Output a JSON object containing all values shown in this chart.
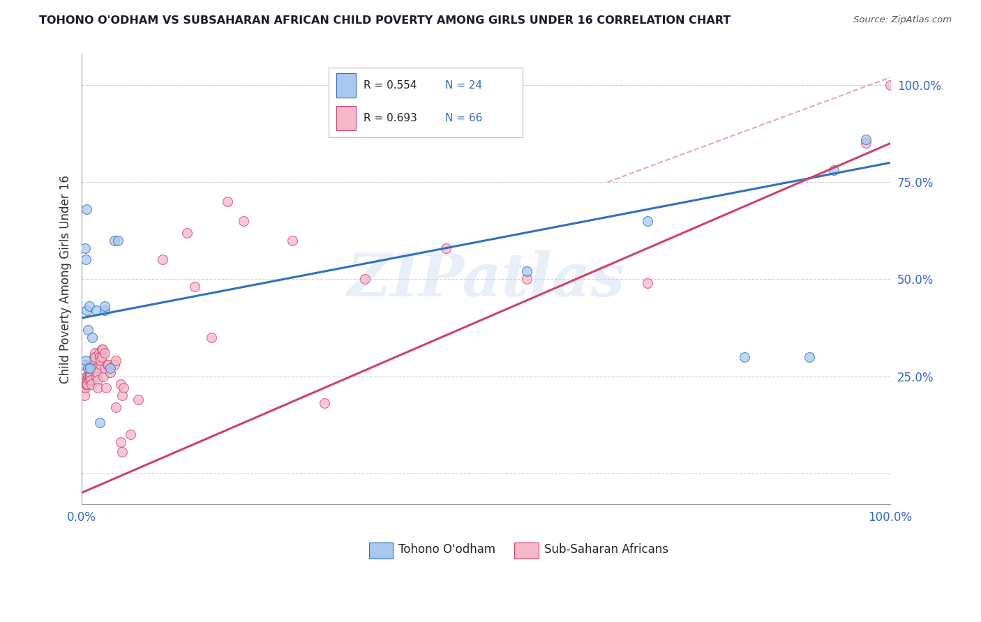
{
  "title": "TOHONO O'ODHAM VS SUBSAHARAN AFRICAN CHILD POVERTY AMONG GIRLS UNDER 16 CORRELATION CHART",
  "source": "Source: ZipAtlas.com",
  "ylabel": "Child Poverty Among Girls Under 16",
  "blue_R": "R = 0.554",
  "blue_N": "N = 24",
  "pink_R": "R = 0.693",
  "pink_N": "N = 66",
  "blue_color": "#a8c8f0",
  "pink_color": "#f5b8c8",
  "blue_line_color": "#3070c0",
  "pink_line_color": "#d04070",
  "dashed_line_color": "#e08090",
  "legend_label_blue": "Tohono O'odham",
  "legend_label_pink": "Sub-Saharan Africans",
  "watermark": "ZIPatlas",
  "blue_points_pct": [
    [
      0.3,
      28
    ],
    [
      0.4,
      58
    ],
    [
      0.5,
      55
    ],
    [
      0.5,
      29
    ],
    [
      0.6,
      42
    ],
    [
      0.6,
      68
    ],
    [
      0.8,
      37
    ],
    [
      0.8,
      27
    ],
    [
      0.9,
      43
    ],
    [
      1.0,
      27
    ],
    [
      1.3,
      35
    ],
    [
      1.8,
      42
    ],
    [
      2.2,
      13
    ],
    [
      2.8,
      42
    ],
    [
      2.8,
      43
    ],
    [
      3.5,
      27
    ],
    [
      4.0,
      60
    ],
    [
      4.5,
      60
    ],
    [
      55,
      52
    ],
    [
      70,
      65
    ],
    [
      82,
      30
    ],
    [
      90,
      30
    ],
    [
      93,
      78
    ],
    [
      97,
      86
    ]
  ],
  "pink_points_pct": [
    [
      0.2,
      22
    ],
    [
      0.3,
      20
    ],
    [
      0.4,
      22
    ],
    [
      0.5,
      24
    ],
    [
      0.5,
      23
    ],
    [
      0.6,
      25
    ],
    [
      0.6,
      23
    ],
    [
      0.7,
      24
    ],
    [
      0.7,
      23
    ],
    [
      0.8,
      27
    ],
    [
      0.8,
      25
    ],
    [
      0.9,
      24
    ],
    [
      0.9,
      25
    ],
    [
      1.0,
      25
    ],
    [
      1.0,
      26
    ],
    [
      1.1,
      24
    ],
    [
      1.2,
      23
    ],
    [
      1.3,
      28
    ],
    [
      1.4,
      27
    ],
    [
      1.5,
      30
    ],
    [
      1.5,
      29
    ],
    [
      1.6,
      31
    ],
    [
      1.6,
      30
    ],
    [
      1.8,
      25
    ],
    [
      1.8,
      27
    ],
    [
      1.9,
      26
    ],
    [
      2.0,
      24
    ],
    [
      2.0,
      22
    ],
    [
      2.1,
      31
    ],
    [
      2.2,
      30
    ],
    [
      2.3,
      28
    ],
    [
      2.3,
      29
    ],
    [
      2.5,
      30
    ],
    [
      2.5,
      32
    ],
    [
      2.6,
      32
    ],
    [
      2.7,
      25
    ],
    [
      2.8,
      31
    ],
    [
      2.8,
      27
    ],
    [
      3.0,
      22
    ],
    [
      3.2,
      28
    ],
    [
      3.3,
      28
    ],
    [
      3.5,
      26
    ],
    [
      4.0,
      28
    ],
    [
      4.2,
      29
    ],
    [
      4.2,
      17
    ],
    [
      4.8,
      8
    ],
    [
      4.8,
      23
    ],
    [
      5.0,
      20
    ],
    [
      5.0,
      5.5
    ],
    [
      5.2,
      22
    ],
    [
      6.0,
      10
    ],
    [
      7.0,
      19
    ],
    [
      10.0,
      55
    ],
    [
      13.0,
      62
    ],
    [
      14.0,
      48
    ],
    [
      16.0,
      35
    ],
    [
      18.0,
      70
    ],
    [
      20.0,
      65
    ],
    [
      26.0,
      60
    ],
    [
      30.0,
      18
    ],
    [
      35.0,
      50
    ],
    [
      45.0,
      58
    ],
    [
      55.0,
      50
    ],
    [
      70.0,
      49
    ],
    [
      97.0,
      85
    ],
    [
      100.0,
      100
    ]
  ],
  "blue_line_points": [
    [
      0,
      40
    ],
    [
      100,
      80
    ]
  ],
  "pink_line_points": [
    [
      0,
      -5
    ],
    [
      100,
      85
    ]
  ],
  "dashed_line_points": [
    [
      65,
      75
    ],
    [
      100,
      102
    ]
  ],
  "grid_color": "#d0d0d8",
  "bg_color": "#ffffff",
  "title_color": "#1a1a2e",
  "axis_label_color": "#333333",
  "tick_color": "#3366cc",
  "yticks": [
    0,
    25,
    50,
    75,
    100
  ],
  "ytick_labels": [
    "",
    "25.0%",
    "50.0%",
    "75.0%",
    "100.0%"
  ],
  "xlim": [
    0,
    100
  ],
  "ylim": [
    -8,
    108
  ]
}
